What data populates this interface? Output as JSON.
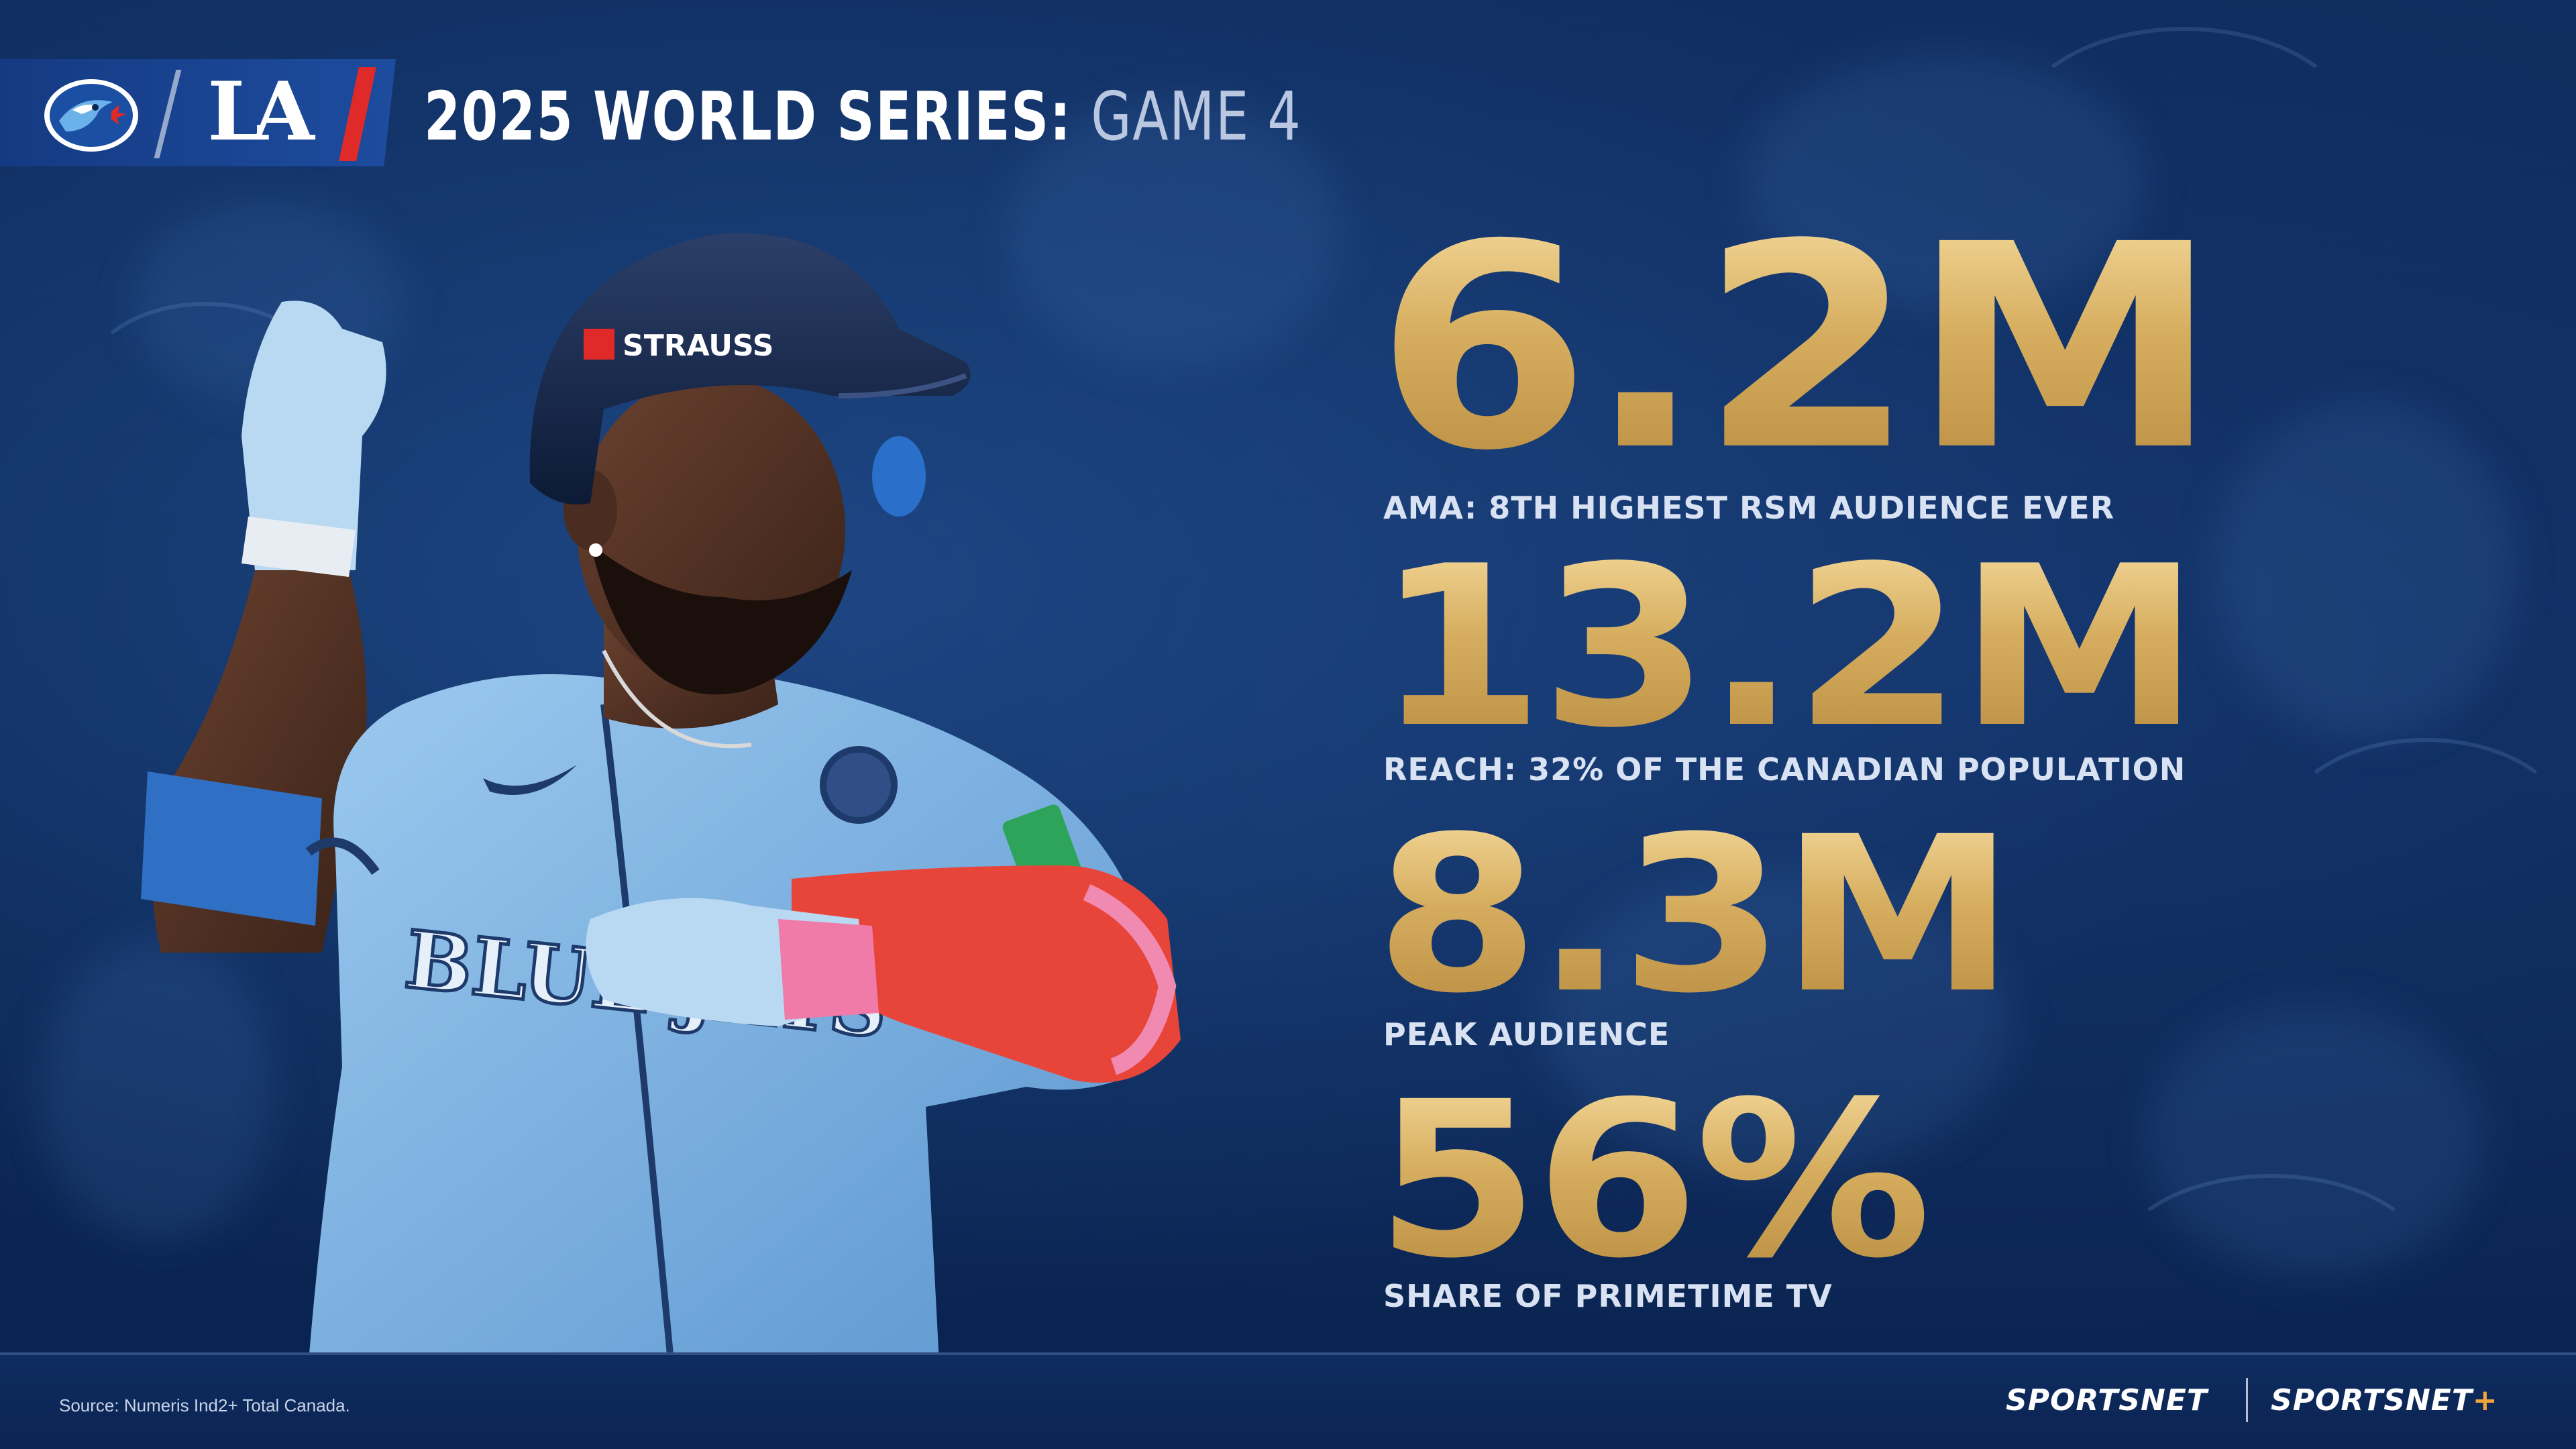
{
  "header": {
    "title_main": "2025 WORLD SERIES:",
    "title_game": "GAME 4",
    "team_logos": [
      "blue-jays-logo",
      "dodgers-la-logo"
    ]
  },
  "player": {
    "helmet_sponsor": "STRAUSS",
    "jersey_text": "BLUE JAYS",
    "patch": "World Series"
  },
  "stats": [
    {
      "value": "6.2M",
      "label": "AMA: 8TH HIGHEST RSM AUDIENCE EVER"
    },
    {
      "value": "13.2M",
      "label": "REACH: 32% OF THE CANADIAN POPULATION"
    },
    {
      "value": "8.3M",
      "label": "PEAK AUDIENCE"
    },
    {
      "value": "56%",
      "label": "SHARE OF PRIMETIME TV"
    }
  ],
  "footer": {
    "source": "Source: Numeris Ind2+ Total Canada.",
    "brand_1": "SPORTSNET",
    "brand_2": "SPORTSNET",
    "brand_2_plus": "+"
  },
  "colors": {
    "background": "#0c2856",
    "gold": "#d6ad5e",
    "accent_red": "#e02a2a",
    "jersey": "#7fb6e6"
  }
}
